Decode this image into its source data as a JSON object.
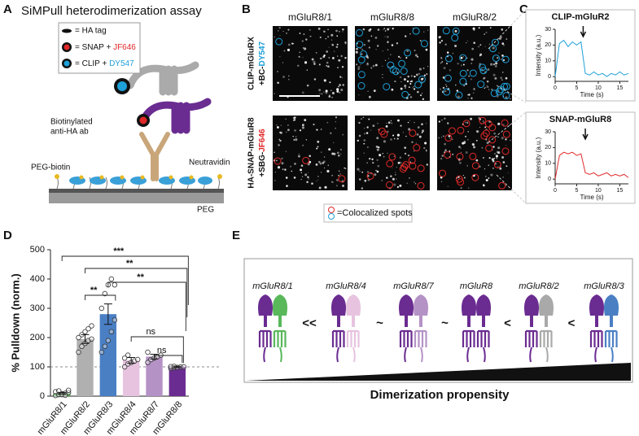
{
  "panels": {
    "a": {
      "letter": "A",
      "title": "SiMPull heterodimerization assay",
      "legend": [
        {
          "text": "= HA tag"
        },
        {
          "text": "= SNAP + ",
          "dye": "JF646",
          "color": "#e02828"
        },
        {
          "text": "= CLIP + ",
          "dye": "DY547",
          "color": "#1ea0d8"
        }
      ],
      "antibody_label": [
        "Biotinylated",
        "anti-HA ab"
      ],
      "peg_biotin": "PEG-biotin",
      "neutravidin": "Neutravidin",
      "peg": "PEG"
    },
    "b": {
      "letter": "B",
      "columns": [
        "mGluR8/1",
        "mGluR8/8",
        "mGluR8/2"
      ],
      "rows": [
        {
          "line1": "CLIP-mGluRX",
          "prefix": "+BC-",
          "dye": "DY547",
          "color": "#1ea0d8"
        },
        {
          "line1": "HA-SNAP-mGluR8",
          "prefix": "+SBG-",
          "dye": "JF646",
          "color": "#e02828"
        }
      ],
      "legend": "=Colocalized spots"
    },
    "c": {
      "letter": "C"
    },
    "d": {
      "letter": "D"
    },
    "e": {
      "letter": "E",
      "subunit_color": "#6a2c91",
      "receptors": [
        {
          "label": "mGluR8/1",
          "color": "#58b85a"
        },
        {
          "label": "mGluR8/4",
          "color": "#e7c3df"
        },
        {
          "label": "mGluR8/7",
          "color": "#b592c6"
        },
        {
          "label": "mGluR8",
          "color": "#6a2c91"
        },
        {
          "label": "mGluR8/2",
          "color": "#a9a9a9"
        },
        {
          "label": "mGluR8/3",
          "color": "#4a7fc4"
        }
      ],
      "relations": [
        "<<",
        "~",
        "~",
        "<",
        "<"
      ],
      "axis_label": "Dimerization propensity"
    }
  },
  "chart_data": [
    {
      "type": "line",
      "title": "CLIP-mGluR2",
      "xlabel": "Time (s)",
      "ylabel": "Intensity (a.u.)",
      "color": "#1ea0d8",
      "x": [
        0,
        1,
        2,
        3,
        4,
        5,
        6,
        7,
        8,
        9,
        10,
        11,
        12,
        13,
        14,
        15,
        16,
        17
      ],
      "values": [
        0,
        21,
        23,
        19,
        22,
        20,
        22,
        2,
        1,
        3,
        1,
        2,
        0,
        2,
        1,
        3,
        1,
        2
      ],
      "arrow_x": 6.5,
      "xlim": [
        0,
        17
      ],
      "ylim": [
        -3,
        30
      ],
      "xticks": [
        0,
        5,
        10,
        15
      ],
      "yticks": [
        0,
        10,
        20,
        30
      ]
    },
    {
      "type": "line",
      "title": "SNAP-mGluR8",
      "xlabel": "Time (s)",
      "ylabel": "Intensity (a.u.)",
      "color": "#e02828",
      "x": [
        0,
        1,
        2,
        3,
        4,
        5,
        6,
        7,
        8,
        9,
        10,
        11,
        12,
        13,
        14,
        15,
        16,
        17
      ],
      "values": [
        0,
        15,
        17,
        16,
        17,
        15,
        16,
        4,
        3,
        4,
        2,
        3,
        4,
        2,
        3,
        2,
        3,
        1
      ],
      "arrow_x": 7,
      "xlim": [
        0,
        17
      ],
      "ylim": [
        -3,
        30
      ],
      "xticks": [
        0,
        5,
        10,
        15
      ],
      "yticks": [
        0,
        10,
        20,
        30
      ]
    },
    {
      "type": "bar",
      "ylabel": "% Pulldown (norm.)",
      "categories": [
        "mGluR8/1",
        "mGluR8/2",
        "mGluR8/3",
        "mGluR8/4",
        "mGluR8/7",
        "mGluR8/8"
      ],
      "values": [
        10,
        195,
        280,
        122,
        135,
        100
      ],
      "errors": [
        3,
        15,
        35,
        10,
        8,
        2
      ],
      "points": [
        [
          2,
          5,
          8,
          10,
          12,
          15,
          18,
          5,
          3,
          20
        ],
        [
          150,
          170,
          180,
          190,
          195,
          200,
          210,
          220,
          230,
          240
        ],
        [
          150,
          170,
          190,
          220,
          260,
          300,
          350,
          380,
          400,
          380
        ],
        [
          100,
          110,
          115,
          120,
          125,
          130,
          140
        ],
        [
          115,
          125,
          130,
          135,
          140,
          150
        ],
        [
          95,
          97,
          98,
          100,
          100,
          101,
          102
        ]
      ],
      "colors": [
        "#58b85a",
        "#b0b0b0",
        "#4a7fc4",
        "#e7c3df",
        "#b592c6",
        "#6a2c91"
      ],
      "reference_line": 100,
      "ylim": [
        0,
        500
      ],
      "yticks": [
        0,
        100,
        200,
        300,
        400,
        500
      ],
      "annotations": [
        {
          "text": "***",
          "between": [
            "mGluR8/1",
            "mGluR8/8"
          ]
        },
        {
          "text": "**",
          "between": [
            "mGluR8/2",
            "mGluR8/8"
          ]
        },
        {
          "text": "**",
          "between": [
            "mGluR8/3",
            "mGluR8/8"
          ]
        },
        {
          "text": "**",
          "between": [
            "mGluR8/2",
            "mGluR8/3"
          ]
        },
        {
          "text": "ns",
          "between": [
            "mGluR8/4",
            "mGluR8/8"
          ]
        },
        {
          "text": "ns",
          "between": [
            "mGluR8/7",
            "mGluR8/8"
          ]
        }
      ]
    }
  ]
}
